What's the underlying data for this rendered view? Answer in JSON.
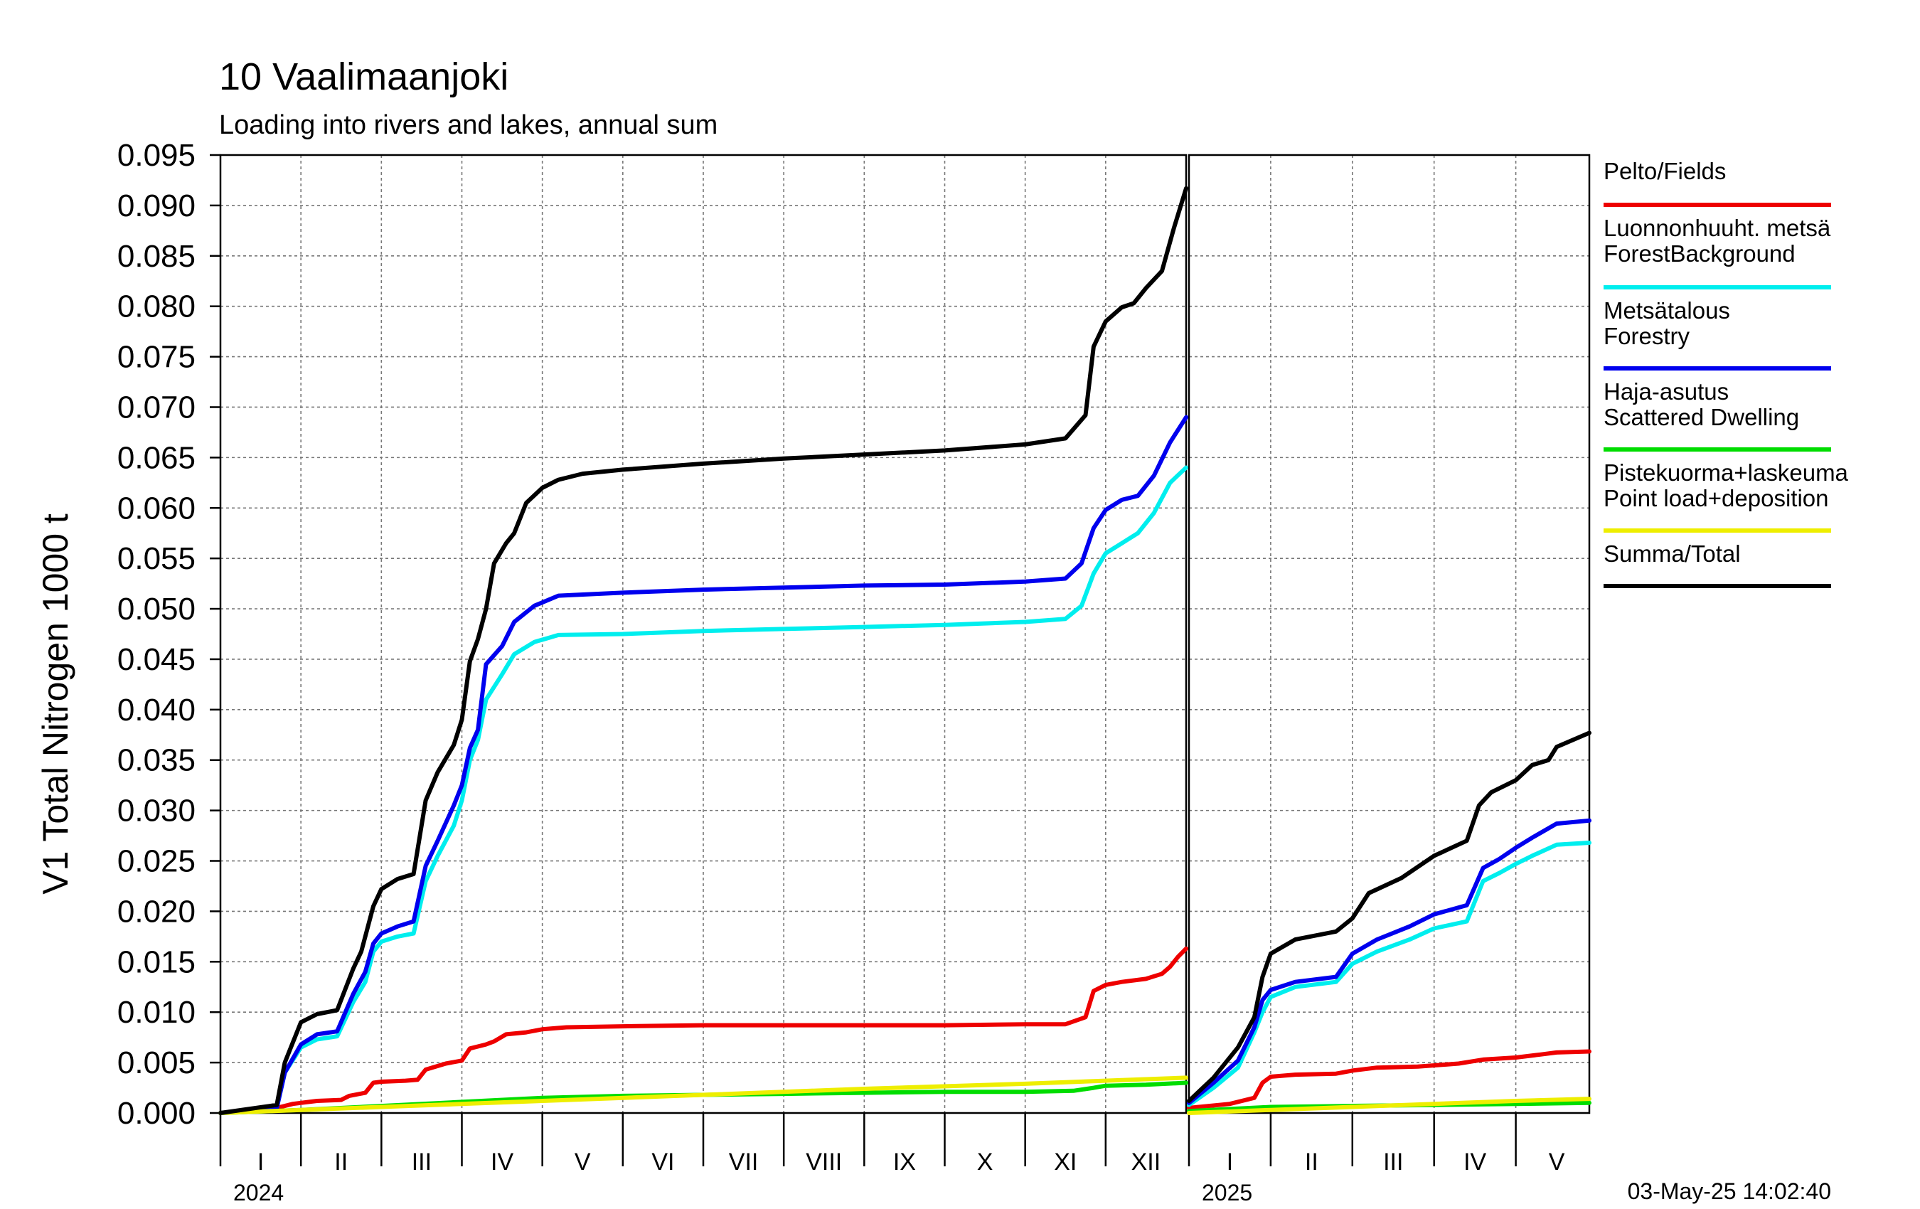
{
  "chart_data": {
    "type": "line",
    "title": "10 Vaalimaanjoki",
    "subtitle": "Loading into rivers and lakes, annual sum",
    "ylabel": "V1 Total Nitrogen 1000 t",
    "ylim": [
      0,
      0.095
    ],
    "yticks": [
      "0.000",
      "0.005",
      "0.010",
      "0.015",
      "0.020",
      "0.025",
      "0.030",
      "0.035",
      "0.040",
      "0.045",
      "0.050",
      "0.055",
      "0.060",
      "0.065",
      "0.070",
      "0.075",
      "0.080",
      "0.085",
      "0.090",
      "0.095"
    ],
    "grid": true,
    "legend_position": "right",
    "timestamp": "03-May-25 14:02:40",
    "panels": [
      {
        "year": "2024",
        "months": [
          "I",
          "II",
          "III",
          "IV",
          "V",
          "VI",
          "VII",
          "VIII",
          "IX",
          "X",
          "XI",
          "XII"
        ],
        "month_count": 12
      },
      {
        "year": "2025",
        "months": [
          "I",
          "II",
          "III",
          "IV",
          "V"
        ],
        "month_count": 4.9
      }
    ],
    "series": [
      {
        "name": "Pelto/Fields",
        "color": "#ee0000",
        "data_2024": [
          [
            0,
            0
          ],
          [
            0.7,
            0.0005
          ],
          [
            0.9,
            0.0009
          ],
          [
            1.2,
            0.0012
          ],
          [
            1.5,
            0.0013
          ],
          [
            1.6,
            0.0017
          ],
          [
            1.8,
            0.002
          ],
          [
            1.9,
            0.003
          ],
          [
            2.0,
            0.0031
          ],
          [
            2.3,
            0.0032
          ],
          [
            2.45,
            0.0033
          ],
          [
            2.55,
            0.0043
          ],
          [
            2.8,
            0.0049
          ],
          [
            3.0,
            0.0052
          ],
          [
            3.1,
            0.0064
          ],
          [
            3.3,
            0.0068
          ],
          [
            3.4,
            0.0071
          ],
          [
            3.55,
            0.0078
          ],
          [
            3.8,
            0.008
          ],
          [
            4.0,
            0.0083
          ],
          [
            4.3,
            0.0085
          ],
          [
            5.0,
            0.0086
          ],
          [
            6.0,
            0.0087
          ],
          [
            7.0,
            0.0087
          ],
          [
            8.0,
            0.0087
          ],
          [
            9.0,
            0.0087
          ],
          [
            10.0,
            0.0088
          ],
          [
            10.5,
            0.0088
          ],
          [
            10.75,
            0.0095
          ],
          [
            10.85,
            0.0121
          ],
          [
            11.0,
            0.0127
          ],
          [
            11.2,
            0.013
          ],
          [
            11.5,
            0.0133
          ],
          [
            11.7,
            0.0138
          ],
          [
            11.8,
            0.0145
          ],
          [
            11.9,
            0.0155
          ],
          [
            12.0,
            0.0163
          ]
        ],
        "data_2025": [
          [
            0,
            0.0005
          ],
          [
            0.5,
            0.0009
          ],
          [
            0.8,
            0.0015
          ],
          [
            0.9,
            0.003
          ],
          [
            1.0,
            0.0036
          ],
          [
            1.3,
            0.0038
          ],
          [
            1.8,
            0.0039
          ],
          [
            2.0,
            0.0042
          ],
          [
            2.3,
            0.0045
          ],
          [
            2.8,
            0.0046
          ],
          [
            3.3,
            0.0049
          ],
          [
            3.6,
            0.0053
          ],
          [
            4.0,
            0.0055
          ],
          [
            4.3,
            0.0058
          ],
          [
            4.5,
            0.006
          ],
          [
            4.9,
            0.0061
          ]
        ]
      },
      {
        "name": "Luonnonhuuht. metsä ForestBackground",
        "name_lines": [
          "Luonnonhuuht. metsä",
          "ForestBackground"
        ],
        "color": "#00eeee",
        "data_2024": [
          [
            0,
            0
          ],
          [
            0.7,
            0.0005
          ],
          [
            0.8,
            0.004
          ],
          [
            1.0,
            0.0065
          ],
          [
            1.2,
            0.0073
          ],
          [
            1.45,
            0.0076
          ],
          [
            1.65,
            0.011
          ],
          [
            1.8,
            0.013
          ],
          [
            1.9,
            0.016
          ],
          [
            2.0,
            0.017
          ],
          [
            2.2,
            0.0175
          ],
          [
            2.4,
            0.0178
          ],
          [
            2.55,
            0.023
          ],
          [
            2.7,
            0.0255
          ],
          [
            2.9,
            0.0285
          ],
          [
            3.0,
            0.031
          ],
          [
            3.1,
            0.035
          ],
          [
            3.2,
            0.037
          ],
          [
            3.3,
            0.041
          ],
          [
            3.5,
            0.0435
          ],
          [
            3.65,
            0.0455
          ],
          [
            3.9,
            0.0467
          ],
          [
            4.2,
            0.0474
          ],
          [
            5.0,
            0.0475
          ],
          [
            6.0,
            0.0478
          ],
          [
            7.0,
            0.048
          ],
          [
            8.0,
            0.0482
          ],
          [
            9.0,
            0.0484
          ],
          [
            10.0,
            0.0487
          ],
          [
            10.5,
            0.049
          ],
          [
            10.7,
            0.0503
          ],
          [
            10.85,
            0.0535
          ],
          [
            11.0,
            0.0555
          ],
          [
            11.2,
            0.0565
          ],
          [
            11.4,
            0.0575
          ],
          [
            11.6,
            0.0595
          ],
          [
            11.8,
            0.0625
          ],
          [
            12.0,
            0.064
          ]
        ],
        "data_2025": [
          [
            0,
            0.0008
          ],
          [
            0.3,
            0.0025
          ],
          [
            0.6,
            0.0045
          ],
          [
            0.8,
            0.008
          ],
          [
            0.9,
            0.01
          ],
          [
            1.0,
            0.0115
          ],
          [
            1.3,
            0.0125
          ],
          [
            1.8,
            0.013
          ],
          [
            2.0,
            0.0148
          ],
          [
            2.3,
            0.016
          ],
          [
            2.7,
            0.0172
          ],
          [
            3.0,
            0.0183
          ],
          [
            3.4,
            0.019
          ],
          [
            3.6,
            0.023
          ],
          [
            3.8,
            0.0238
          ],
          [
            4.0,
            0.0247
          ],
          [
            4.2,
            0.0255
          ],
          [
            4.5,
            0.0266
          ],
          [
            4.9,
            0.0268
          ]
        ]
      },
      {
        "name": "Metsätalous Forestry",
        "name_lines": [
          "Metsätalous",
          "Forestry"
        ],
        "color": "#0000ee",
        "data_2024": [
          [
            0,
            0
          ],
          [
            0.7,
            0.0005
          ],
          [
            0.8,
            0.004
          ],
          [
            1.0,
            0.0068
          ],
          [
            1.2,
            0.0078
          ],
          [
            1.45,
            0.0081
          ],
          [
            1.65,
            0.0118
          ],
          [
            1.8,
            0.014
          ],
          [
            1.9,
            0.0168
          ],
          [
            2.0,
            0.0178
          ],
          [
            2.2,
            0.0185
          ],
          [
            2.4,
            0.019
          ],
          [
            2.55,
            0.0245
          ],
          [
            2.7,
            0.027
          ],
          [
            2.9,
            0.0305
          ],
          [
            3.0,
            0.0325
          ],
          [
            3.1,
            0.0362
          ],
          [
            3.2,
            0.038
          ],
          [
            3.3,
            0.0445
          ],
          [
            3.5,
            0.0463
          ],
          [
            3.65,
            0.0487
          ],
          [
            3.9,
            0.0503
          ],
          [
            4.2,
            0.0513
          ],
          [
            5.0,
            0.0516
          ],
          [
            6.0,
            0.0519
          ],
          [
            7.0,
            0.0521
          ],
          [
            8.0,
            0.0523
          ],
          [
            9.0,
            0.0524
          ],
          [
            10.0,
            0.0527
          ],
          [
            10.5,
            0.053
          ],
          [
            10.7,
            0.0545
          ],
          [
            10.85,
            0.058
          ],
          [
            11.0,
            0.0598
          ],
          [
            11.2,
            0.0608
          ],
          [
            11.4,
            0.0612
          ],
          [
            11.6,
            0.0632
          ],
          [
            11.8,
            0.0665
          ],
          [
            12.0,
            0.069
          ]
        ],
        "data_2025": [
          [
            0,
            0.001
          ],
          [
            0.3,
            0.003
          ],
          [
            0.6,
            0.0052
          ],
          [
            0.8,
            0.0085
          ],
          [
            0.9,
            0.0112
          ],
          [
            1.0,
            0.0122
          ],
          [
            1.3,
            0.013
          ],
          [
            1.8,
            0.0135
          ],
          [
            2.0,
            0.0158
          ],
          [
            2.3,
            0.0172
          ],
          [
            2.7,
            0.0185
          ],
          [
            3.0,
            0.0197
          ],
          [
            3.4,
            0.0206
          ],
          [
            3.6,
            0.0243
          ],
          [
            3.8,
            0.0252
          ],
          [
            4.0,
            0.0263
          ],
          [
            4.2,
            0.0273
          ],
          [
            4.5,
            0.0287
          ],
          [
            4.9,
            0.029
          ]
        ]
      },
      {
        "name": "Haja-asutus Scattered Dwelling",
        "name_lines": [
          "Haja-asutus",
          "Scattered Dwelling"
        ],
        "color": "#00dd00",
        "data_2024": [
          [
            0,
            0
          ],
          [
            1.0,
            0.0003
          ],
          [
            2.0,
            0.0007
          ],
          [
            3.0,
            0.0011
          ],
          [
            4.0,
            0.0015
          ],
          [
            5.0,
            0.0017
          ],
          [
            6.0,
            0.0018
          ],
          [
            7.0,
            0.0019
          ],
          [
            8.0,
            0.002
          ],
          [
            9.0,
            0.0021
          ],
          [
            10.0,
            0.0021
          ],
          [
            10.6,
            0.0022
          ],
          [
            10.85,
            0.0025
          ],
          [
            11.0,
            0.0027
          ],
          [
            11.5,
            0.0028
          ],
          [
            12.0,
            0.003
          ]
        ],
        "data_2025": [
          [
            0,
            0.0002
          ],
          [
            1.0,
            0.0006
          ],
          [
            2.0,
            0.0007
          ],
          [
            3.0,
            0.0008
          ],
          [
            4.0,
            0.0009
          ],
          [
            4.9,
            0.001
          ]
        ]
      },
      {
        "name": "Pistekuorma+laskeuma Point load+deposition",
        "name_lines": [
          "Pistekuorma+laskeuma",
          "Point load+deposition"
        ],
        "color": "#eeee00",
        "data_2024": [
          [
            0,
            0
          ],
          [
            2.0,
            0.0006
          ],
          [
            4.0,
            0.0012
          ],
          [
            6.0,
            0.0018
          ],
          [
            8.0,
            0.0024
          ],
          [
            10.0,
            0.0029
          ],
          [
            12.0,
            0.0035
          ]
        ],
        "data_2025": [
          [
            0,
            0
          ],
          [
            1.0,
            0.0003
          ],
          [
            2.0,
            0.0006
          ],
          [
            3.0,
            0.0009
          ],
          [
            4.0,
            0.0012
          ],
          [
            4.9,
            0.0014
          ]
        ]
      },
      {
        "name": "Summa/Total",
        "color": "#000000",
        "data_2024": [
          [
            0,
            0
          ],
          [
            0.7,
            0.0008
          ],
          [
            0.8,
            0.005
          ],
          [
            1.0,
            0.009
          ],
          [
            1.2,
            0.0098
          ],
          [
            1.45,
            0.0102
          ],
          [
            1.65,
            0.0143
          ],
          [
            1.75,
            0.016
          ],
          [
            1.9,
            0.0205
          ],
          [
            2.0,
            0.0222
          ],
          [
            2.2,
            0.0232
          ],
          [
            2.4,
            0.0237
          ],
          [
            2.55,
            0.031
          ],
          [
            2.7,
            0.0338
          ],
          [
            2.9,
            0.0365
          ],
          [
            3.0,
            0.039
          ],
          [
            3.1,
            0.0448
          ],
          [
            3.2,
            0.047
          ],
          [
            3.3,
            0.05
          ],
          [
            3.4,
            0.0545
          ],
          [
            3.55,
            0.0565
          ],
          [
            3.65,
            0.0575
          ],
          [
            3.8,
            0.0605
          ],
          [
            4.0,
            0.062
          ],
          [
            4.2,
            0.0628
          ],
          [
            4.5,
            0.0634
          ],
          [
            5.0,
            0.0638
          ],
          [
            6.0,
            0.0644
          ],
          [
            7.0,
            0.0649
          ],
          [
            8.0,
            0.0653
          ],
          [
            9.0,
            0.0657
          ],
          [
            10.0,
            0.0663
          ],
          [
            10.5,
            0.0669
          ],
          [
            10.75,
            0.0692
          ],
          [
            10.85,
            0.076
          ],
          [
            11.0,
            0.0785
          ],
          [
            11.2,
            0.0799
          ],
          [
            11.35,
            0.0803
          ],
          [
            11.5,
            0.0818
          ],
          [
            11.7,
            0.0835
          ],
          [
            11.85,
            0.0878
          ],
          [
            12.0,
            0.0917
          ]
        ],
        "data_2025": [
          [
            0,
            0.0012
          ],
          [
            0.3,
            0.0035
          ],
          [
            0.6,
            0.0065
          ],
          [
            0.8,
            0.0095
          ],
          [
            0.9,
            0.0135
          ],
          [
            1.0,
            0.0158
          ],
          [
            1.3,
            0.0172
          ],
          [
            1.8,
            0.018
          ],
          [
            2.0,
            0.0193
          ],
          [
            2.2,
            0.0218
          ],
          [
            2.6,
            0.0233
          ],
          [
            3.0,
            0.0255
          ],
          [
            3.4,
            0.027
          ],
          [
            3.55,
            0.0305
          ],
          [
            3.7,
            0.0318
          ],
          [
            4.0,
            0.033
          ],
          [
            4.2,
            0.0345
          ],
          [
            4.4,
            0.035
          ],
          [
            4.5,
            0.0363
          ],
          [
            4.9,
            0.0377
          ]
        ]
      }
    ]
  }
}
